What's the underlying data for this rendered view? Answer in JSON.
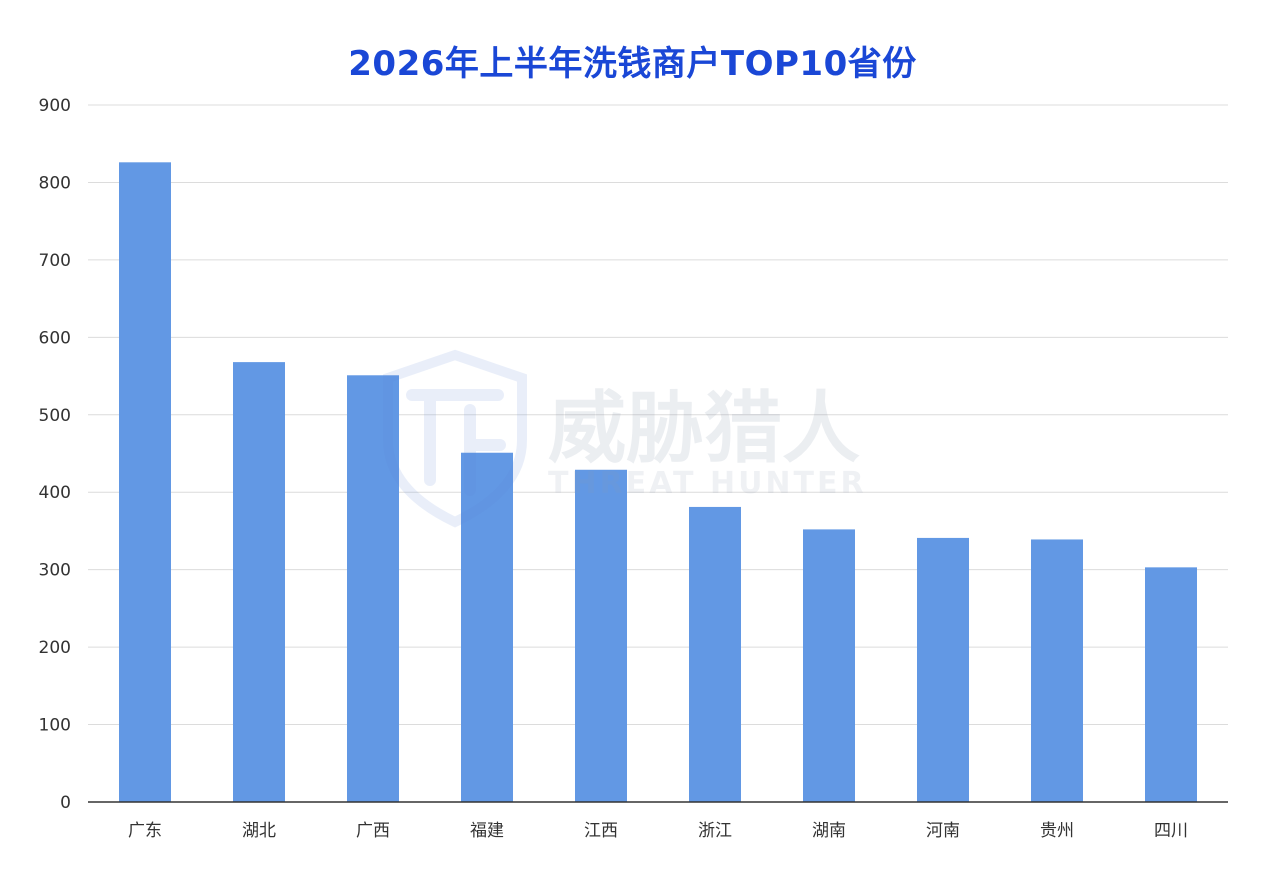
{
  "chart_data": {
    "type": "bar",
    "title": "2026年上半年洗钱商户TOP10省份",
    "xlabel": "",
    "ylabel": "",
    "categories": [
      "广东",
      "湖北",
      "广西",
      "福建",
      "江西",
      "浙江",
      "湖南",
      "河南",
      "贵州",
      "四川"
    ],
    "values": [
      826,
      568,
      551,
      451,
      429,
      381,
      352,
      341,
      339,
      303
    ],
    "ylim": [
      0,
      900
    ],
    "yticks": [
      "0",
      "100",
      "200",
      "300",
      "400",
      "500",
      "600",
      "700",
      "800",
      "900"
    ],
    "grid": true,
    "legend": "none",
    "bar_color": "#6298e4",
    "title_color": "#1a47d6"
  },
  "watermark": {
    "text_cn": "威胁猎人",
    "text_en": "THREAT HUNTER",
    "logo": "shield-th-logo"
  }
}
